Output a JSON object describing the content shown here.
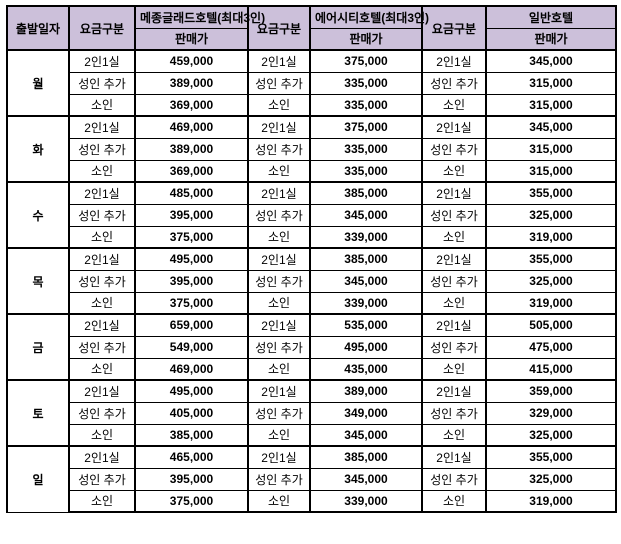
{
  "colors": {
    "header_bg": "#CCC0DA",
    "price_text": "#1D6FD8",
    "border": "#000000",
    "label_text": "#000000"
  },
  "table": {
    "header": {
      "departure_date": "출발일자",
      "fare_category": "요금구분",
      "price_label": "판매가",
      "hotels": [
        "메종글래드호텔(최대3인)",
        "에어시티호텔(최대3인)",
        "일반호텔"
      ]
    },
    "row_categories": [
      "2인1실",
      "성인 추가",
      "소인"
    ],
    "groups": [
      {
        "day": "월",
        "rows": [
          [
            "459,000",
            "375,000",
            "345,000"
          ],
          [
            "389,000",
            "335,000",
            "315,000"
          ],
          [
            "369,000",
            "335,000",
            "315,000"
          ]
        ]
      },
      {
        "day": "화",
        "rows": [
          [
            "469,000",
            "375,000",
            "345,000"
          ],
          [
            "389,000",
            "335,000",
            "315,000"
          ],
          [
            "369,000",
            "335,000",
            "315,000"
          ]
        ]
      },
      {
        "day": "수",
        "rows": [
          [
            "485,000",
            "385,000",
            "355,000"
          ],
          [
            "395,000",
            "345,000",
            "325,000"
          ],
          [
            "375,000",
            "339,000",
            "319,000"
          ]
        ]
      },
      {
        "day": "목",
        "rows": [
          [
            "495,000",
            "385,000",
            "355,000"
          ],
          [
            "395,000",
            "345,000",
            "325,000"
          ],
          [
            "375,000",
            "339,000",
            "319,000"
          ]
        ]
      },
      {
        "day": "금",
        "rows": [
          [
            "659,000",
            "535,000",
            "505,000"
          ],
          [
            "549,000",
            "495,000",
            "475,000"
          ],
          [
            "469,000",
            "435,000",
            "415,000"
          ]
        ]
      },
      {
        "day": "토",
        "rows": [
          [
            "495,000",
            "389,000",
            "359,000"
          ],
          [
            "405,000",
            "349,000",
            "329,000"
          ],
          [
            "385,000",
            "345,000",
            "325,000"
          ]
        ]
      },
      {
        "day": "일",
        "rows": [
          [
            "465,000",
            "385,000",
            "355,000"
          ],
          [
            "395,000",
            "345,000",
            "325,000"
          ],
          [
            "375,000",
            "339,000",
            "319,000"
          ]
        ]
      }
    ]
  }
}
